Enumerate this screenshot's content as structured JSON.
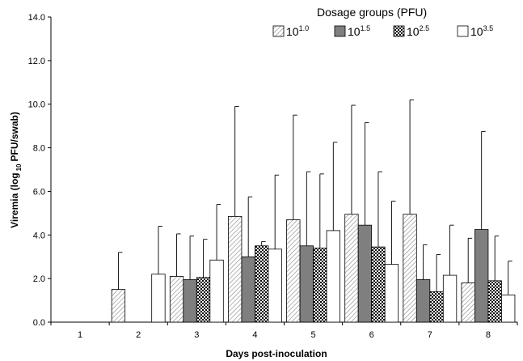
{
  "chart_data": {
    "type": "bar",
    "title": "",
    "xlabel": "Days post-inoculation",
    "ylabel_parts": [
      "Viremia (log",
      "10",
      "PFU/swab)"
    ],
    "categories": [
      "1",
      "2",
      "3",
      "4",
      "5",
      "6",
      "7",
      "8"
    ],
    "ylim": [
      0,
      14
    ],
    "yticks": [
      "0.0",
      "2.0",
      "4.0",
      "6.0",
      "8.0",
      "10.0",
      "12.0",
      "14.0"
    ],
    "grid": false,
    "legend": {
      "title": "Dosage groups (PFU)",
      "position": "top-right"
    },
    "series": [
      {
        "name": "10",
        "sup": "1.0",
        "pattern": "diagonal-hatch",
        "values": [
          0.0,
          1.5,
          2.1,
          4.85,
          4.7,
          4.95,
          4.95,
          1.8
        ],
        "errors": [
          0.0,
          1.7,
          1.95,
          5.05,
          4.8,
          5.0,
          5.25,
          2.05
        ]
      },
      {
        "name": "10",
        "sup": "1.5",
        "pattern": "dark-gray",
        "values": [
          0.0,
          0.0,
          1.95,
          3.0,
          3.5,
          4.45,
          1.95,
          4.25
        ],
        "errors": [
          0.0,
          0.0,
          2.0,
          2.75,
          3.4,
          4.7,
          1.6,
          4.5
        ]
      },
      {
        "name": "10",
        "sup": "2.5",
        "pattern": "checkered",
        "values": [
          0.0,
          0.0,
          2.05,
          3.5,
          3.4,
          3.45,
          1.4,
          1.9
        ],
        "errors": [
          0.0,
          0.0,
          1.75,
          0.2,
          3.4,
          3.45,
          1.7,
          2.05
        ]
      },
      {
        "name": "10",
        "sup": "3.5",
        "pattern": "white",
        "values": [
          0.0,
          2.2,
          2.85,
          3.35,
          4.2,
          2.65,
          2.15,
          1.25
        ],
        "errors": [
          0.0,
          2.2,
          2.55,
          3.4,
          4.05,
          2.9,
          2.3,
          1.55
        ]
      }
    ]
  }
}
